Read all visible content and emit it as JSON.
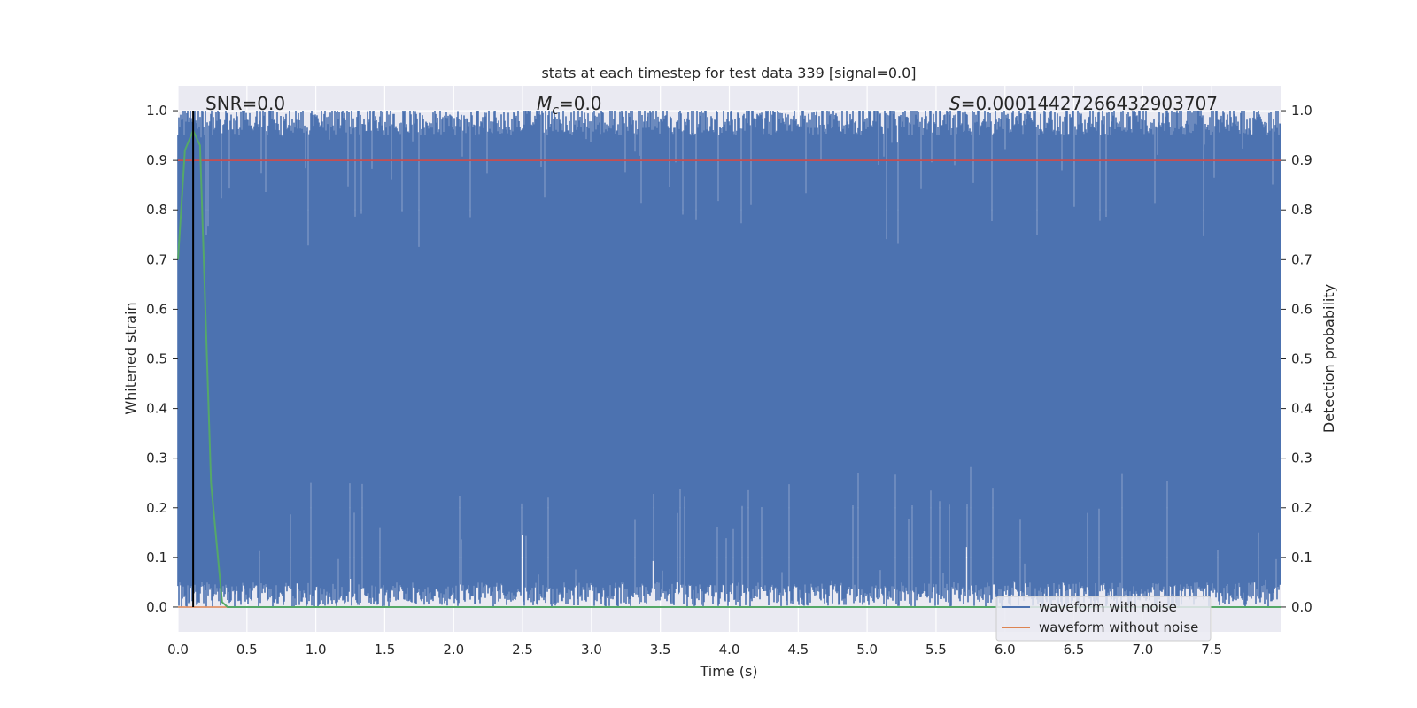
{
  "chart_data": {
    "type": "line",
    "title": "stats at each timestep for test data 339 [signal=0.0]",
    "xlabel": "Time (s)",
    "ylabel_left": "Whitened strain",
    "ylabel_right": "Detection probability",
    "xlim": [
      0.0,
      8.0
    ],
    "ylim": [
      -0.05,
      1.05
    ],
    "x_ticks": [
      "0.0",
      "0.5",
      "1.0",
      "1.5",
      "2.0",
      "2.5",
      "3.0",
      "3.5",
      "4.0",
      "4.5",
      "5.0",
      "5.5",
      "6.0",
      "6.5",
      "7.0",
      "7.5"
    ],
    "x_tick_values": [
      0.0,
      0.5,
      1.0,
      1.5,
      2.0,
      2.5,
      3.0,
      3.5,
      4.0,
      4.5,
      5.0,
      5.5,
      6.0,
      6.5,
      7.0,
      7.5
    ],
    "y_ticks": [
      "0.0",
      "0.1",
      "0.2",
      "0.3",
      "0.4",
      "0.5",
      "0.6",
      "0.7",
      "0.8",
      "0.9",
      "1.0"
    ],
    "y_tick_values": [
      0.0,
      0.1,
      0.2,
      0.3,
      0.4,
      0.5,
      0.6,
      0.7,
      0.8,
      0.9,
      1.0
    ],
    "grid": true,
    "legend_position": "lower-right",
    "annotations": {
      "snr": "SNR=0.0",
      "mc_symbol": "M",
      "mc_sub": "c",
      "mc_value": "=0.0",
      "s_symbol": "S",
      "s_value": "=0.00014427266432903707"
    },
    "marker_time": 0.11,
    "threshold": 0.9,
    "series": [
      {
        "name": "waveform with noise",
        "color": "#4c72b0",
        "envelope_high": 0.95,
        "envelope_low": 0.05
      },
      {
        "name": "waveform without noise",
        "color": "#dd8452",
        "value": 0.0
      },
      {
        "color": "#55a868",
        "x": [
          0.0,
          0.05,
          0.11,
          0.16,
          0.24,
          0.32,
          0.36,
          8.0
        ],
        "y": [
          0.7,
          0.92,
          0.96,
          0.93,
          0.25,
          0.01,
          0.0,
          0.0
        ]
      }
    ],
    "threshold_color": "#c44e52",
    "marker_color": "#000000",
    "background_color": "#eaeaf2"
  }
}
